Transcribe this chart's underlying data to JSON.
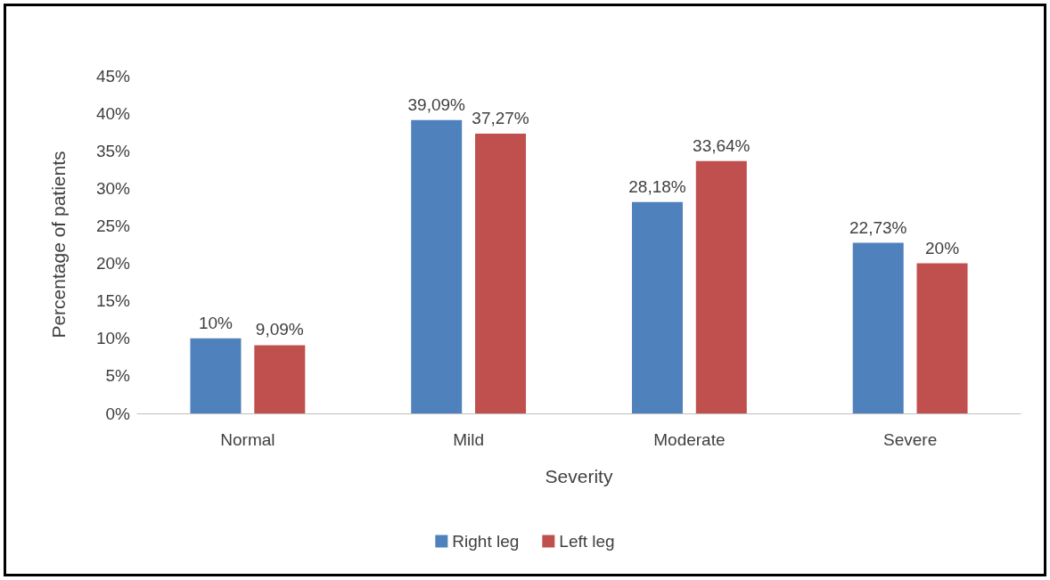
{
  "chart_data": {
    "type": "bar",
    "xlabel": "Severity",
    "ylabel": "Percentage of patients",
    "categories": [
      "Normal",
      "Mild",
      "Moderate",
      "Severe"
    ],
    "series": [
      {
        "name": "Right leg",
        "color": "#4f81bd",
        "values": [
          10,
          39.09,
          28.18,
          22.73
        ],
        "value_labels": [
          "10%",
          "39,09%",
          "28,18%",
          "22,73%"
        ]
      },
      {
        "name": "Left leg",
        "color": "#c0504d",
        "values": [
          9.09,
          37.27,
          33.64,
          20
        ],
        "value_labels": [
          "9,09%",
          "37,27%",
          "33,64%",
          "20%"
        ]
      }
    ],
    "ylim": [
      0,
      45
    ],
    "yticks": [
      {
        "value": 0,
        "label": "0%"
      },
      {
        "value": 5,
        "label": "5%"
      },
      {
        "value": 10,
        "label": "10%"
      },
      {
        "value": 15,
        "label": "15%"
      },
      {
        "value": 20,
        "label": "20%"
      },
      {
        "value": 25,
        "label": "25%"
      },
      {
        "value": 30,
        "label": "30%"
      },
      {
        "value": 35,
        "label": "35%"
      },
      {
        "value": 40,
        "label": "40%"
      },
      {
        "value": 45,
        "label": "45%"
      }
    ],
    "grid": false,
    "legend": "bottom"
  }
}
